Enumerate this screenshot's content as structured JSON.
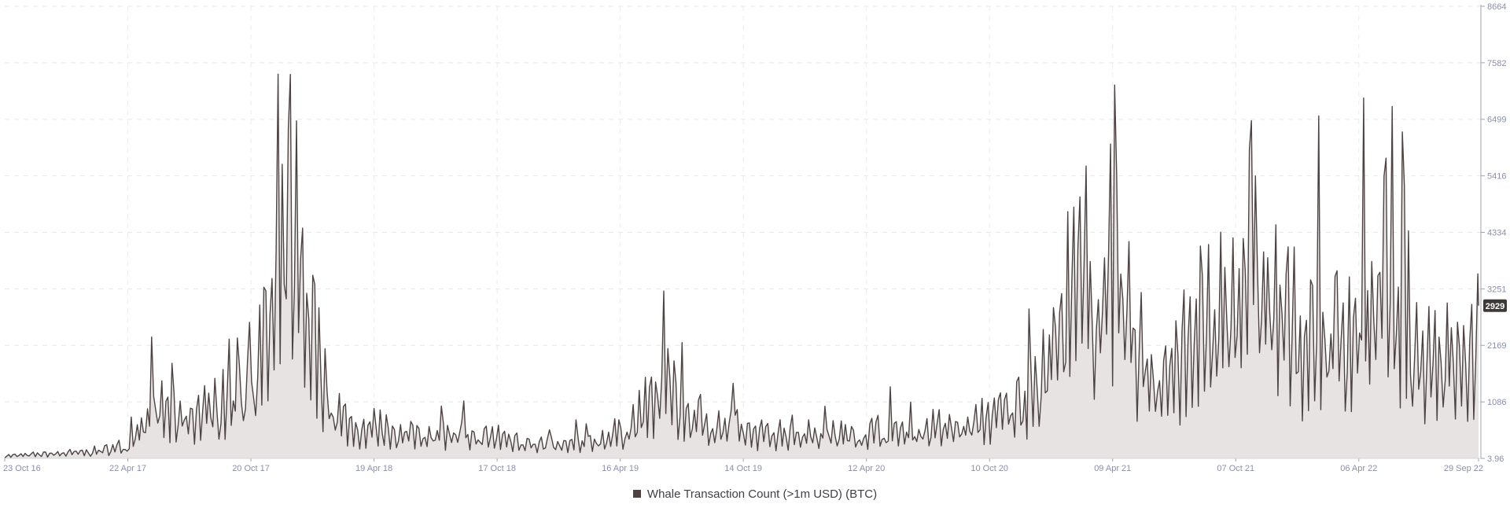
{
  "chart_data": {
    "type": "area",
    "title": "",
    "xlabel": "",
    "ylabel": "",
    "x_tick_labels": [
      "23 Oct 16",
      "22 Apr 17",
      "20 Oct 17",
      "19 Apr 18",
      "17 Oct 18",
      "16 Apr 19",
      "14 Oct 19",
      "12 Apr 20",
      "10 Oct 20",
      "09 Apr 21",
      "07 Oct 21",
      "06 Apr 22",
      "29 Sep 22"
    ],
    "y_tick_labels": [
      "3.96",
      "1086",
      "2169",
      "3251",
      "4334",
      "5416",
      "6499",
      "7582",
      "8664"
    ],
    "ylim": [
      3.96,
      8664
    ],
    "x": [
      "2016-10-23",
      "2016-12-01",
      "2017-01-15",
      "2017-03-01",
      "2017-04-01",
      "2017-04-22",
      "2017-05-15",
      "2017-06-05",
      "2017-06-25",
      "2017-07-15",
      "2017-08-05",
      "2017-08-25",
      "2017-09-15",
      "2017-10-05",
      "2017-10-20",
      "2017-11-05",
      "2017-11-20",
      "2017-12-05",
      "2017-12-15",
      "2017-12-25",
      "2018-01-05",
      "2018-01-15",
      "2018-01-25",
      "2018-02-05",
      "2018-02-20",
      "2018-03-05",
      "2018-03-20",
      "2018-04-05",
      "2018-04-19",
      "2018-05-10",
      "2018-06-01",
      "2018-06-25",
      "2018-07-20",
      "2018-08-15",
      "2018-09-10",
      "2018-10-05",
      "2018-10-17",
      "2018-11-05",
      "2018-11-25",
      "2018-12-20",
      "2019-01-20",
      "2019-02-20",
      "2019-03-20",
      "2019-04-16",
      "2019-05-10",
      "2019-05-30",
      "2019-06-15",
      "2019-06-26",
      "2019-07-10",
      "2019-07-25",
      "2019-08-15",
      "2019-09-10",
      "2019-10-14",
      "2019-11-10",
      "2019-12-10",
      "2020-01-10",
      "2020-02-10",
      "2020-03-12",
      "2020-04-12",
      "2020-05-15",
      "2020-06-15",
      "2020-07-15",
      "2020-08-15",
      "2020-09-15",
      "2020-10-10",
      "2020-11-05",
      "2020-11-25",
      "2020-12-15",
      "2020-12-28",
      "2021-01-08",
      "2021-01-20",
      "2021-02-05",
      "2021-02-20",
      "2021-03-05",
      "2021-03-20",
      "2021-04-09",
      "2021-04-25",
      "2021-05-10",
      "2021-05-25",
      "2021-06-10",
      "2021-06-25",
      "2021-07-10",
      "2021-07-25",
      "2021-08-10",
      "2021-08-25",
      "2021-09-10",
      "2021-09-25",
      "2021-10-07",
      "2021-10-20",
      "2021-11-01",
      "2021-11-10",
      "2021-11-20",
      "2021-12-05",
      "2021-12-20",
      "2022-01-05",
      "2022-01-20",
      "2022-02-05",
      "2022-02-20",
      "2022-03-10",
      "2022-03-25",
      "2022-04-06",
      "2022-04-20",
      "2022-05-05",
      "2022-05-12",
      "2022-05-25",
      "2022-06-10",
      "2022-06-18",
      "2022-06-30",
      "2022-07-15",
      "2022-08-01",
      "2022-08-15",
      "2022-09-01",
      "2022-09-15",
      "2022-09-29"
    ],
    "series": [
      {
        "name": "Whale Transaction Count (>1m USD) (BTC)",
        "color": "#4e4343",
        "fill": "#e6e3e2",
        "values": [
          60,
          90,
          120,
          160,
          240,
          300,
          800,
          1200,
          900,
          1100,
          1000,
          1300,
          1200,
          1500,
          1700,
          2500,
          3200,
          4500,
          6000,
          5200,
          4000,
          3400,
          2600,
          1800,
          1200,
          900,
          700,
          650,
          800,
          700,
          550,
          600,
          620,
          560,
          520,
          480,
          520,
          460,
          400,
          330,
          300,
          360,
          480,
          600,
          900,
          1200,
          1500,
          1800,
          1250,
          1000,
          900,
          750,
          640,
          560,
          580,
          600,
          620,
          560,
          600,
          620,
          650,
          680,
          720,
          800,
          950,
          1150,
          1300,
          1550,
          1900,
          2600,
          3000,
          3600,
          3900,
          4100,
          4000,
          4300,
          3800,
          2800,
          2400,
          2100,
          2000,
          2100,
          2300,
          2500,
          2800,
          3200,
          3700,
          4200,
          4700,
          5000,
          4600,
          4100,
          3500,
          3100,
          2900,
          2700,
          2850,
          3000,
          2900,
          3100,
          3050,
          3000,
          3300,
          4800,
          3100,
          2900,
          2600,
          2500,
          2500,
          2450,
          2400,
          2250,
          2150,
          2929
        ]
      }
    ],
    "last_value_label": "2929",
    "grid": true,
    "legend": "bottom-center"
  }
}
